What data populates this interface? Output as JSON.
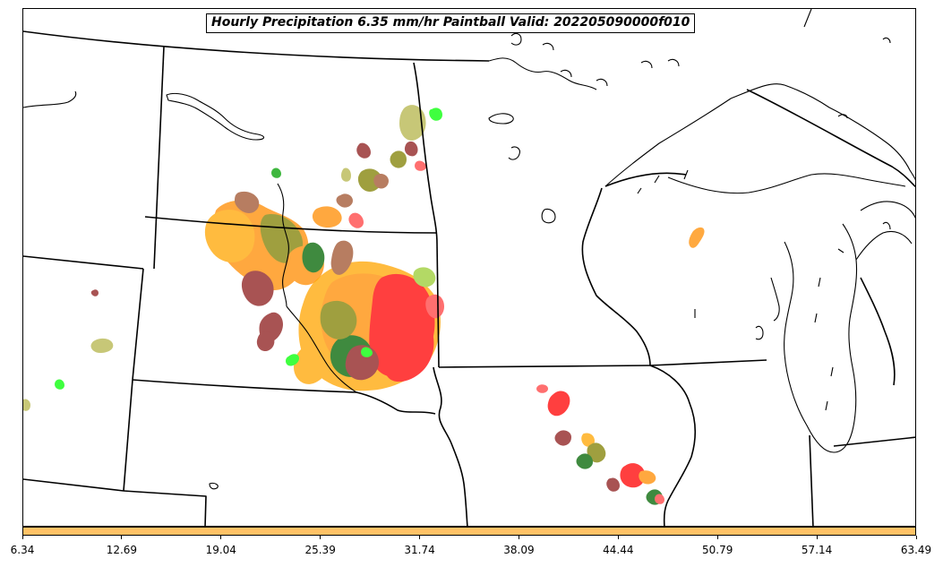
{
  "title": "Hourly Precipitation 6.35 mm/hr Paintball Valid: 202205090000f010",
  "colorbar": {
    "color": "#ffc266",
    "ticks": [
      "6.34",
      "12.69",
      "19.04",
      "25.39",
      "31.74",
      "38.09",
      "44.44",
      "50.79",
      "57.14",
      "63.49"
    ]
  },
  "colors": {
    "coastline": "#000000",
    "state_borders": "#000000",
    "paintball_palette": [
      "#ff8c00",
      "#ffa500",
      "#ff0000",
      "#8b1a1a",
      "#a0522d",
      "#808000",
      "#9acd32",
      "#006400",
      "#00ff00",
      "#ff4040",
      "#b5b54a"
    ]
  }
}
